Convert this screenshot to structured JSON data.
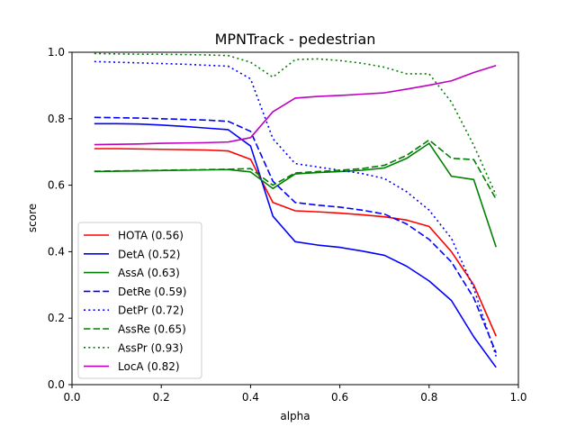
{
  "chart_data": {
    "type": "line",
    "title": "MPNTrack - pedestrian",
    "xlabel": "alpha",
    "ylabel": "score",
    "xlim": [
      0.0,
      1.0
    ],
    "ylim": [
      0.0,
      1.0
    ],
    "xticks": [
      "0.0",
      "0.2",
      "0.4",
      "0.6",
      "0.8",
      "1.0"
    ],
    "yticks": [
      "0.0",
      "0.2",
      "0.4",
      "0.6",
      "0.8",
      "1.0"
    ],
    "grid": false,
    "legend_position": "lower-left",
    "x": [
      0.05,
      0.1,
      0.15,
      0.2,
      0.25,
      0.3,
      0.35,
      0.4,
      0.45,
      0.5,
      0.55,
      0.6,
      0.65,
      0.7,
      0.75,
      0.8,
      0.85,
      0.9,
      0.95
    ],
    "series": [
      {
        "name": "HOTA (0.56)",
        "color": "#ff0000",
        "dash": "solid",
        "values": [
          0.71,
          0.71,
          0.709,
          0.708,
          0.707,
          0.706,
          0.703,
          0.678,
          0.548,
          0.523,
          0.52,
          0.516,
          0.511,
          0.505,
          0.495,
          0.476,
          0.4,
          0.3,
          0.146
        ]
      },
      {
        "name": "DetA (0.52)",
        "color": "#0000ff",
        "dash": "solid",
        "values": [
          0.785,
          0.785,
          0.784,
          0.781,
          0.777,
          0.772,
          0.767,
          0.718,
          0.507,
          0.43,
          0.42,
          0.413,
          0.402,
          0.389,
          0.356,
          0.312,
          0.253,
          0.144,
          0.052
        ]
      },
      {
        "name": "AssA (0.63)",
        "color": "#008000",
        "dash": "solid",
        "values": [
          0.641,
          0.642,
          0.643,
          0.644,
          0.645,
          0.646,
          0.647,
          0.64,
          0.59,
          0.634,
          0.638,
          0.641,
          0.645,
          0.652,
          0.681,
          0.726,
          0.627,
          0.617,
          0.414
        ]
      },
      {
        "name": "DetRe (0.59)",
        "color": "#0000ff",
        "dash": "dashed",
        "values": [
          0.804,
          0.803,
          0.802,
          0.8,
          0.798,
          0.796,
          0.792,
          0.762,
          0.612,
          0.548,
          0.54,
          0.534,
          0.525,
          0.513,
          0.483,
          0.437,
          0.369,
          0.261,
          0.096
        ]
      },
      {
        "name": "DetPr (0.72)",
        "color": "#0000ff",
        "dash": "dotted",
        "values": [
          0.972,
          0.97,
          0.968,
          0.966,
          0.964,
          0.961,
          0.958,
          0.92,
          0.74,
          0.665,
          0.655,
          0.645,
          0.635,
          0.62,
          0.58,
          0.525,
          0.44,
          0.29,
          0.085
        ]
      },
      {
        "name": "AssRe (0.65)",
        "color": "#008000",
        "dash": "dashed",
        "values": [
          0.642,
          0.643,
          0.644,
          0.645,
          0.646,
          0.647,
          0.648,
          0.65,
          0.6,
          0.637,
          0.641,
          0.645,
          0.65,
          0.66,
          0.69,
          0.736,
          0.681,
          0.677,
          0.558
        ]
      },
      {
        "name": "AssPr (0.93)",
        "color": "#008000",
        "dash": "dotted",
        "values": [
          0.996,
          0.995,
          0.994,
          0.994,
          0.993,
          0.992,
          0.99,
          0.97,
          0.925,
          0.978,
          0.98,
          0.975,
          0.967,
          0.955,
          0.935,
          0.935,
          0.85,
          0.72,
          0.57
        ]
      },
      {
        "name": "LocA (0.82)",
        "color": "#bf00bf",
        "dash": "solid",
        "values": [
          0.722,
          0.723,
          0.724,
          0.726,
          0.727,
          0.728,
          0.73,
          0.743,
          0.821,
          0.862,
          0.867,
          0.87,
          0.874,
          0.878,
          0.889,
          0.901,
          0.914,
          0.939,
          0.96
        ]
      }
    ]
  }
}
